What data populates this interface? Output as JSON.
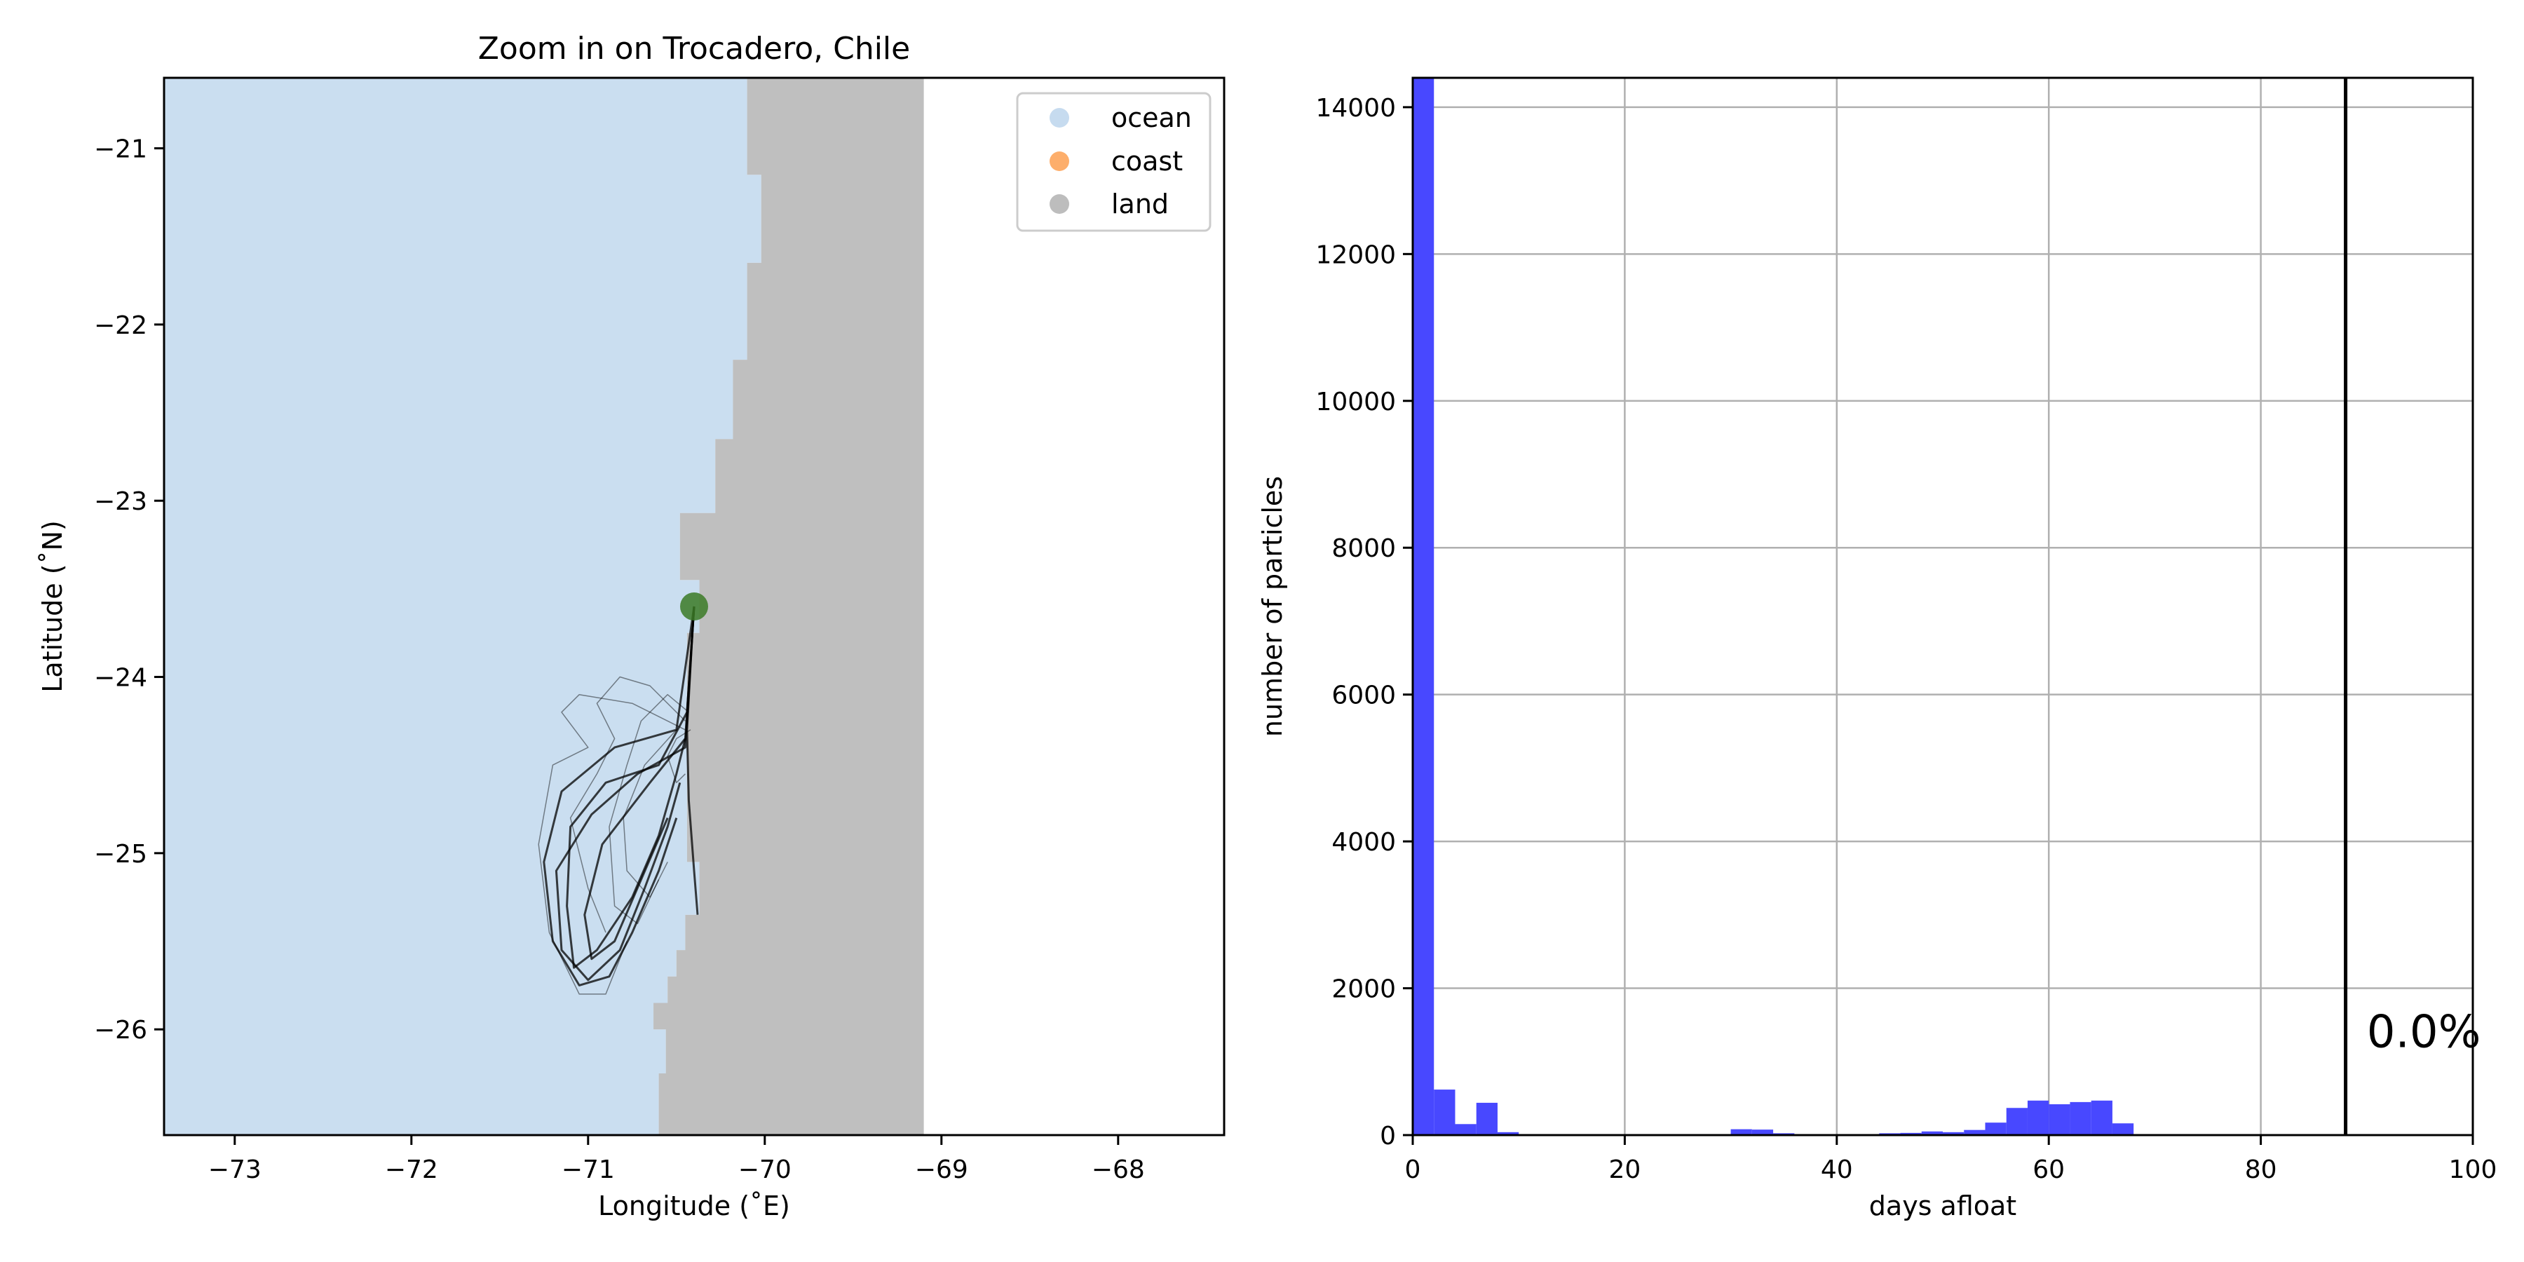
{
  "chart_data": [
    {
      "type": "map",
      "title": "Zoom in on Trocadero, Chile",
      "xlabel": "Longitude (˚E)",
      "ylabel": "Latitude (˚N)",
      "xlim": [
        -73.4,
        -67.4
      ],
      "ylim": [
        -26.6,
        -20.6
      ],
      "xticks": [
        -73,
        -72,
        -71,
        -70,
        -69,
        -68
      ],
      "yticks": [
        -21,
        -22,
        -23,
        -24,
        -25,
        -26
      ],
      "xtick_labels": [
        "−73",
        "−72",
        "−71",
        "−70",
        "−69",
        "−68"
      ],
      "ytick_labels": [
        "−21",
        "−22",
        "−23",
        "−24",
        "−25",
        "−26"
      ],
      "grid": false,
      "legend_position": "top-right",
      "legend": [
        {
          "label": "ocean",
          "color": "#c6dbef"
        },
        {
          "label": "coast",
          "color": "#fdae6b"
        },
        {
          "label": "land",
          "color": "#bdbdbd"
        }
      ],
      "colors": {
        "ocean": "#cadef0",
        "land": "#bfbfbf",
        "marker": "#3b7a26",
        "track": "#000000"
      },
      "release_point": {
        "lon": -70.4,
        "lat": -23.6
      },
      "shoreline": [
        [
          -70.1,
          -20.6
        ],
        [
          -70.1,
          -21.15
        ],
        [
          -70.02,
          -21.15
        ],
        [
          -70.02,
          -21.65
        ],
        [
          -70.1,
          -21.65
        ],
        [
          -70.1,
          -22.2
        ],
        [
          -70.18,
          -22.2
        ],
        [
          -70.18,
          -22.65
        ],
        [
          -70.28,
          -22.65
        ],
        [
          -70.28,
          -23.07
        ],
        [
          -70.48,
          -23.07
        ],
        [
          -70.48,
          -23.45
        ],
        [
          -70.37,
          -23.45
        ],
        [
          -70.37,
          -23.75
        ],
        [
          -70.44,
          -23.75
        ],
        [
          -70.44,
          -25.05
        ],
        [
          -70.37,
          -25.05
        ],
        [
          -70.37,
          -25.35
        ],
        [
          -70.45,
          -25.35
        ],
        [
          -70.45,
          -25.55
        ],
        [
          -70.5,
          -25.55
        ],
        [
          -70.5,
          -25.7
        ],
        [
          -70.55,
          -25.7
        ],
        [
          -70.55,
          -25.85
        ],
        [
          -70.63,
          -25.85
        ],
        [
          -70.63,
          -26.0
        ],
        [
          -70.56,
          -26.0
        ],
        [
          -70.56,
          -26.25
        ],
        [
          -70.6,
          -26.25
        ],
        [
          -70.6,
          -26.6
        ]
      ],
      "land_east_edge": -69.1,
      "trajectories": [
        [
          [
            -70.4,
            -23.6
          ],
          [
            -70.41,
            -23.75
          ],
          [
            -70.44,
            -24.3
          ],
          [
            -70.43,
            -24.7
          ],
          [
            -70.4,
            -25.1
          ],
          [
            -70.38,
            -25.35
          ]
        ],
        [
          [
            -70.4,
            -23.6
          ],
          [
            -70.44,
            -24.2
          ],
          [
            -70.6,
            -24.5
          ],
          [
            -70.9,
            -24.6
          ],
          [
            -71.1,
            -24.85
          ],
          [
            -71.12,
            -25.3
          ],
          [
            -71.08,
            -25.65
          ],
          [
            -70.95,
            -25.55
          ],
          [
            -70.75,
            -25.25
          ],
          [
            -70.6,
            -24.9
          ],
          [
            -70.5,
            -24.55
          ],
          [
            -70.45,
            -24.35
          ]
        ],
        [
          [
            -70.4,
            -23.6
          ],
          [
            -70.45,
            -24.4
          ],
          [
            -70.72,
            -24.55
          ],
          [
            -70.98,
            -24.78
          ],
          [
            -71.18,
            -25.1
          ],
          [
            -71.15,
            -25.55
          ],
          [
            -71.0,
            -25.72
          ],
          [
            -70.82,
            -25.55
          ],
          [
            -70.68,
            -25.2
          ],
          [
            -70.55,
            -24.85
          ],
          [
            -70.48,
            -24.6
          ]
        ],
        [
          [
            -70.4,
            -23.6
          ],
          [
            -70.5,
            -24.3
          ],
          [
            -70.85,
            -24.4
          ],
          [
            -71.15,
            -24.65
          ],
          [
            -71.25,
            -25.05
          ],
          [
            -71.2,
            -25.5
          ],
          [
            -71.05,
            -25.75
          ],
          [
            -70.88,
            -25.7
          ],
          [
            -70.75,
            -25.45
          ],
          [
            -70.6,
            -25.1
          ],
          [
            -70.5,
            -24.8
          ]
        ],
        [
          [
            -70.4,
            -23.6
          ],
          [
            -70.45,
            -24.35
          ],
          [
            -70.65,
            -24.6
          ],
          [
            -70.92,
            -24.95
          ],
          [
            -71.02,
            -25.35
          ],
          [
            -70.98,
            -25.6
          ],
          [
            -70.85,
            -25.5
          ],
          [
            -70.7,
            -25.15
          ],
          [
            -70.55,
            -24.8
          ]
        ],
        [
          [
            -70.42,
            -24.3
          ],
          [
            -70.5,
            -24.35
          ],
          [
            -70.55,
            -24.45
          ],
          [
            -70.5,
            -24.6
          ],
          [
            -70.45,
            -24.55
          ]
        ],
        [
          [
            -70.45,
            -24.3
          ],
          [
            -70.75,
            -24.15
          ],
          [
            -71.05,
            -24.1
          ],
          [
            -71.15,
            -24.2
          ],
          [
            -71.0,
            -24.4
          ],
          [
            -71.2,
            -24.5
          ],
          [
            -71.28,
            -24.95
          ],
          [
            -71.22,
            -25.45
          ],
          [
            -71.05,
            -25.8
          ],
          [
            -70.9,
            -25.8
          ],
          [
            -70.78,
            -25.5
          ]
        ],
        [
          [
            -70.45,
            -24.25
          ],
          [
            -70.65,
            -24.05
          ],
          [
            -70.82,
            -24.0
          ],
          [
            -70.95,
            -24.15
          ],
          [
            -70.85,
            -24.35
          ],
          [
            -70.95,
            -24.55
          ],
          [
            -71.1,
            -24.8
          ],
          [
            -71.0,
            -25.2
          ],
          [
            -70.9,
            -25.45
          ]
        ],
        [
          [
            -70.43,
            -24.2
          ],
          [
            -70.55,
            -24.1
          ],
          [
            -70.7,
            -24.25
          ],
          [
            -70.78,
            -24.5
          ],
          [
            -70.88,
            -24.85
          ],
          [
            -70.85,
            -25.3
          ],
          [
            -70.72,
            -25.4
          ],
          [
            -70.6,
            -25.15
          ]
        ],
        [
          [
            -70.5,
            -24.3
          ],
          [
            -70.68,
            -24.5
          ],
          [
            -70.8,
            -24.8
          ],
          [
            -70.78,
            -25.1
          ],
          [
            -70.65,
            -25.25
          ],
          [
            -70.55,
            -25.05
          ]
        ]
      ]
    },
    {
      "type": "bar",
      "title": "",
      "xlabel": "days afloat",
      "ylabel": "number of particles",
      "xlim": [
        0,
        100
      ],
      "ylim": [
        0,
        14400
      ],
      "xticks": [
        0,
        20,
        40,
        60,
        80,
        100
      ],
      "yticks": [
        0,
        2000,
        4000,
        6000,
        8000,
        10000,
        12000,
        14000
      ],
      "grid": true,
      "bar_color": "#4848ff",
      "bin_width": 2,
      "x": [
        0,
        2,
        4,
        6,
        8,
        10,
        12,
        14,
        16,
        18,
        20,
        22,
        24,
        26,
        28,
        30,
        32,
        34,
        36,
        38,
        40,
        42,
        44,
        46,
        48,
        50,
        52,
        54,
        56,
        58,
        60,
        62,
        64,
        66,
        68,
        70
      ],
      "values": [
        14400,
        620,
        150,
        440,
        40,
        10,
        5,
        5,
        5,
        5,
        5,
        5,
        5,
        5,
        10,
        80,
        75,
        25,
        5,
        5,
        5,
        5,
        25,
        30,
        50,
        40,
        70,
        170,
        370,
        470,
        420,
        450,
        470,
        160,
        10,
        5
      ],
      "vline": {
        "x": 88,
        "color": "#000000"
      },
      "annotation": {
        "text": "0.0%",
        "x": 90,
        "y": 1200
      }
    }
  ]
}
